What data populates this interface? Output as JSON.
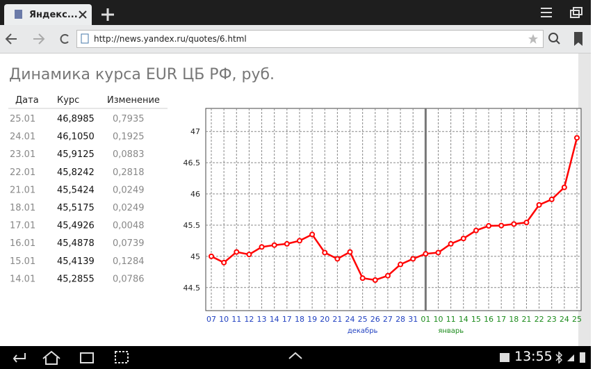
{
  "browser": {
    "tab_title": "Яндекс...",
    "url": "http://news.yandex.ru/quotes/6.html"
  },
  "page": {
    "title": "Динамика курса EUR ЦБ РФ, руб."
  },
  "table": {
    "header": [
      "Дата",
      "Курс",
      "Изменение"
    ],
    "rows": [
      [
        "25.01",
        "46,8985",
        "0,7935"
      ],
      [
        "24.01",
        "46,1050",
        "0,1925"
      ],
      [
        "23.01",
        "45,9125",
        "0,0883"
      ],
      [
        "22.01",
        "45,8242",
        "0,2818"
      ],
      [
        "21.01",
        "45,5424",
        "0,0249"
      ],
      [
        "18.01",
        "45,5175",
        "0,0249"
      ],
      [
        "17.01",
        "45,4926",
        "0,0048"
      ],
      [
        "16.01",
        "45,4878",
        "0,0739"
      ],
      [
        "15.01",
        "45,4139",
        "0,1284"
      ],
      [
        "14.01",
        "45,2855",
        "0,0786"
      ]
    ]
  },
  "chart_data": {
    "type": "line",
    "line_color": "#ff0000",
    "grid": true,
    "ylim": [
      44.13,
      47.37
    ],
    "yticks": [
      44.5,
      45,
      45.5,
      46,
      46.5,
      47
    ],
    "groups": [
      {
        "name": "декабрь",
        "color": "#2040c0",
        "categories": [
          "07",
          "10",
          "11",
          "12",
          "13",
          "14",
          "17",
          "18",
          "19",
          "20",
          "21",
          "24",
          "25",
          "26",
          "27",
          "28",
          "31"
        ],
        "values": [
          45.0,
          44.9,
          45.07,
          45.03,
          45.15,
          45.18,
          45.2,
          45.25,
          45.35,
          45.06,
          44.96,
          45.07,
          44.65,
          44.62,
          44.69,
          44.87,
          44.96
        ]
      },
      {
        "name": "январь",
        "color": "#1a8a1a",
        "categories": [
          "01",
          "10",
          "11",
          "14",
          "15",
          "16",
          "17",
          "18",
          "21",
          "22",
          "23",
          "24",
          "25"
        ],
        "values": [
          45.04,
          45.06,
          45.2,
          45.2855,
          45.4139,
          45.4878,
          45.4926,
          45.5175,
          45.5424,
          45.8242,
          45.9125,
          46.105,
          46.8985
        ]
      }
    ]
  },
  "status_bar": {
    "time": "13:55"
  }
}
